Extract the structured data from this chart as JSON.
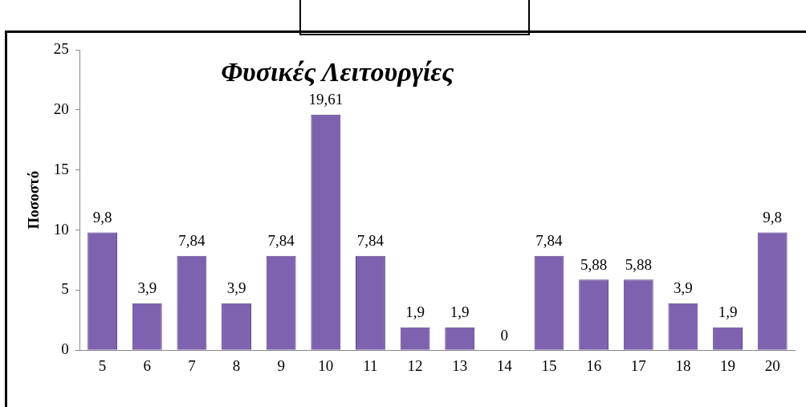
{
  "chart_data": {
    "type": "bar",
    "title": "Φυσικές Λειτουργίες",
    "ylabel": "Ποσοστό",
    "categories": [
      "5",
      "6",
      "7",
      "8",
      "9",
      "10",
      "11",
      "12",
      "13",
      "14",
      "15",
      "16",
      "17",
      "18",
      "19",
      "20"
    ],
    "values": [
      9.8,
      3.9,
      7.84,
      3.9,
      7.84,
      19.61,
      7.84,
      1.9,
      1.9,
      0,
      7.84,
      5.88,
      5.88,
      3.9,
      1.9,
      9.8
    ],
    "value_labels": [
      "9,8",
      "3,9",
      "7,84",
      "3,9",
      "7,84",
      "19,61",
      "7,84",
      "1,9",
      "1,9",
      "0",
      "7,84",
      "5,88",
      "5,88",
      "3,9",
      "1,9",
      "9,8"
    ],
    "color": "#7e62b0",
    "ylim": [
      0,
      25
    ],
    "yticks": [
      0,
      5,
      10,
      15,
      20,
      25
    ],
    "grid": false,
    "legend": false
  }
}
